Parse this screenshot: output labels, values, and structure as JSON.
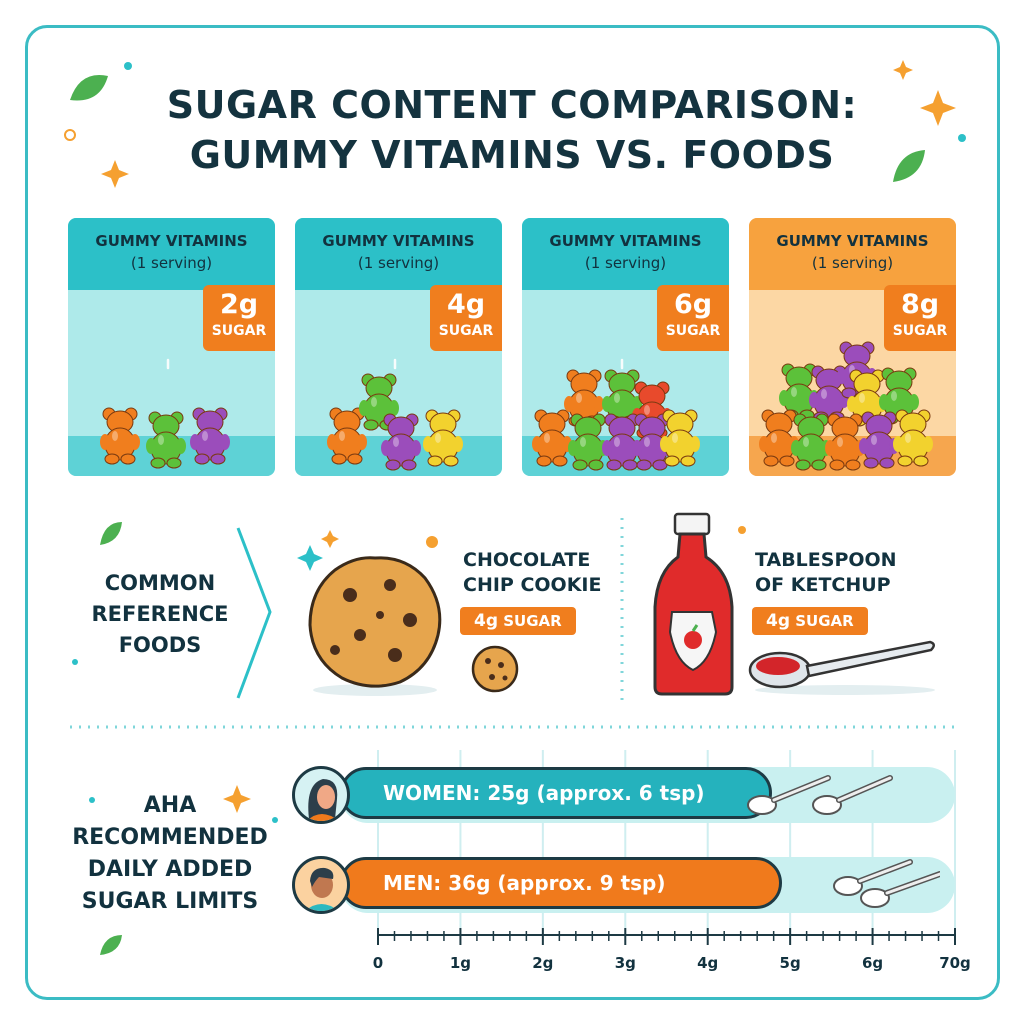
{
  "title": {
    "line1": "SUGAR CONTENT COMPARISON:",
    "line2": "GUMMY VITAMINS VS. FOODS"
  },
  "gummy_cards": [
    {
      "heading": "GUMMY VITAMINS",
      "subheading": "(1 serving)",
      "amount": "2g",
      "unit_label": "SUGAR"
    },
    {
      "heading": "GUMMY VITAMINS",
      "subheading": "(1 serving)",
      "amount": "4g",
      "unit_label": "SUGAR"
    },
    {
      "heading": "GUMMY VITAMINS",
      "subheading": "(1 serving)",
      "amount": "6g",
      "unit_label": "SUGAR"
    },
    {
      "heading": "GUMMY VITAMINS",
      "subheading": "(1 serving)",
      "amount": "8g",
      "unit_label": "SUGAR"
    }
  ],
  "reference": {
    "label": "COMMON REFERENCE FOODS",
    "foods": [
      {
        "name_line1": "CHOCOLATE",
        "name_line2": "CHIP COOKIE",
        "amount": "4g",
        "unit_label": "SUGAR",
        "icon": "cookie-icon"
      },
      {
        "name_line1": "TABLESPOON",
        "name_line2": "OF KETCHUP",
        "amount": "4g",
        "unit_label": "SUGAR",
        "icon": "ketchup-bottle-icon"
      }
    ]
  },
  "limits": {
    "label": "AHA RECOMMENDED DAILY ADDED SUGAR LIMITS",
    "bars": [
      {
        "text": "WOMEN: 25g (approx. 6 tsp)",
        "grams": 25,
        "teaspoons": 6,
        "color": "#25b2bd"
      },
      {
        "text": "MEN: 36g (approx. 9 tsp)",
        "grams": 36,
        "teaspoons": 9,
        "color": "#f07a1c"
      }
    ],
    "axis_ticks": [
      "0",
      "1g",
      "2g",
      "3g",
      "4g",
      "5g",
      "6g",
      "70g"
    ]
  },
  "colors": {
    "teal": "#2cc0c8",
    "orange": "#f07e1e",
    "navy": "#14333f"
  }
}
